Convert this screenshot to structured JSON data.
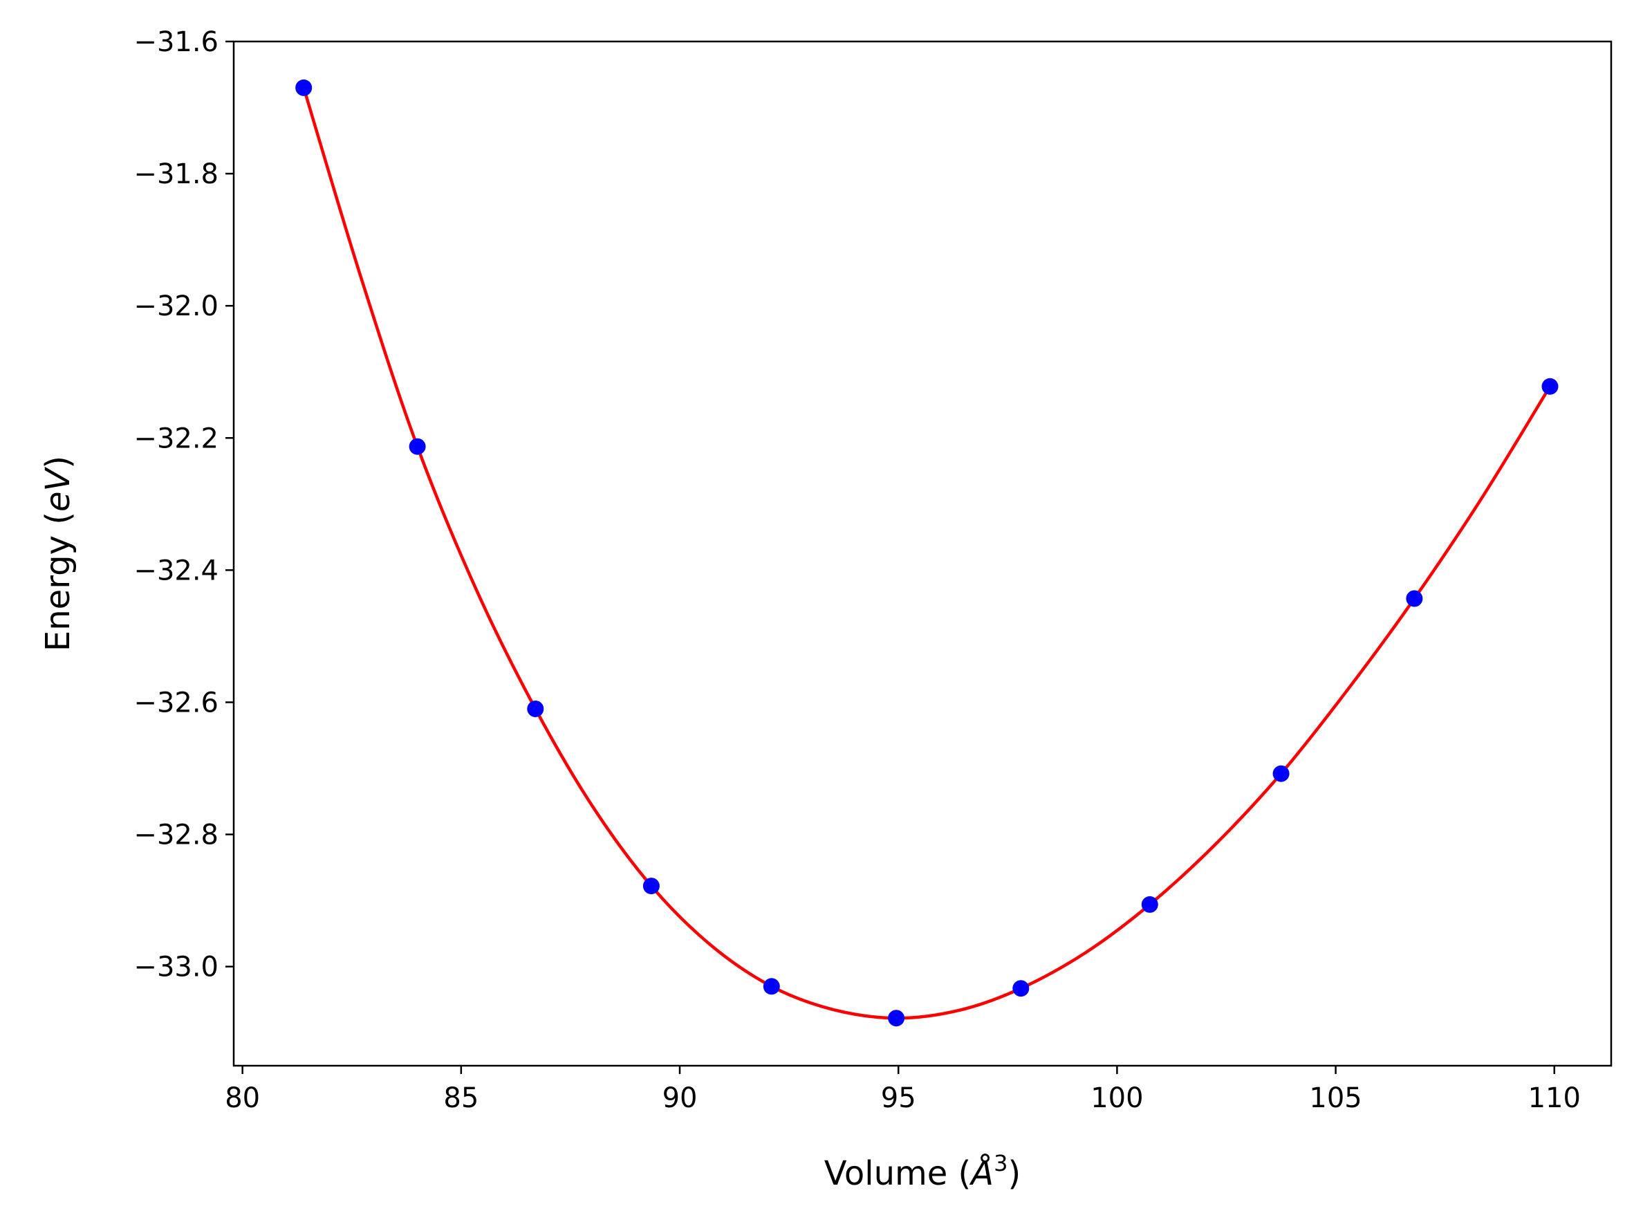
{
  "chart_data": {
    "type": "scatter",
    "title": "",
    "xlabel_prefix": "Volume (",
    "xlabel_unit": "Å",
    "xlabel_sup": "3",
    "xlabel_suffix": ")",
    "ylabel_prefix": "Energy (",
    "ylabel_unit": "eV",
    "ylabel_suffix": ")",
    "xlim": [
      79.8,
      111.3
    ],
    "ylim": [
      -33.15,
      -31.6
    ],
    "xticks": [
      80,
      85,
      90,
      95,
      100,
      105,
      110
    ],
    "xtick_labels": [
      "80",
      "85",
      "90",
      "95",
      "100",
      "105",
      "110"
    ],
    "yticks": [
      -31.6,
      -31.8,
      -32.0,
      -32.2,
      -32.4,
      -32.6,
      -32.8,
      -33.0
    ],
    "ytick_labels": [
      "−31.6",
      "−31.8",
      "−32.0",
      "−32.2",
      "−32.4",
      "−32.6",
      "−32.8",
      "−33.0"
    ],
    "grid": false,
    "colors": {
      "points": "#0000ff",
      "fit": "#ff0000"
    },
    "series": [
      {
        "kind": "points",
        "x": [
          81.4,
          84.0,
          86.7,
          89.35,
          92.1,
          94.95,
          97.8,
          100.75,
          103.75,
          106.8,
          109.9
        ],
        "y": [
          -31.67,
          -32.213,
          -32.61,
          -32.878,
          -33.03,
          -33.078,
          -33.033,
          -32.906,
          -32.708,
          -32.443,
          -32.122
        ]
      },
      {
        "kind": "fit-curve",
        "x": [
          81.4,
          82.7,
          84.0,
          85.35,
          86.7,
          88.0,
          89.35,
          90.7,
          92.1,
          93.5,
          94.95,
          96.4,
          97.8,
          99.3,
          100.75,
          102.25,
          103.75,
          105.25,
          106.8,
          108.35,
          109.9
        ],
        "y": [
          -31.67,
          -31.955,
          -32.213,
          -32.43,
          -32.61,
          -32.757,
          -32.878,
          -32.967,
          -33.03,
          -33.065,
          -33.078,
          -33.066,
          -33.033,
          -32.978,
          -32.906,
          -32.815,
          -32.708,
          -32.583,
          -32.443,
          -32.29,
          -32.122
        ]
      }
    ]
  }
}
